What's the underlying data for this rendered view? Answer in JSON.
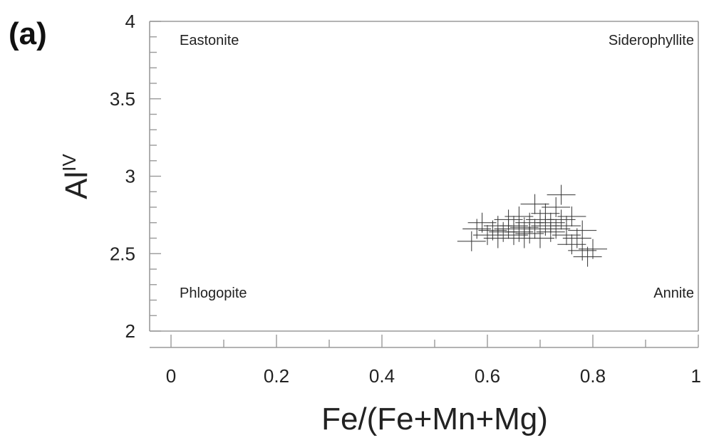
{
  "panel_label": "(a)",
  "chart_data": {
    "type": "scatter",
    "marker": "cross",
    "xlabel": "Fe/(Fe+Mn+Mg)",
    "ylabel_main": "Al",
    "ylabel_sup": "IV",
    "xlim": [
      0,
      1
    ],
    "ylim": [
      2,
      4
    ],
    "x_ticks": [
      "0",
      "0.2",
      "0.4",
      "0.6",
      "0.8",
      "1"
    ],
    "x_tick_values": [
      0,
      0.2,
      0.4,
      0.6,
      0.8,
      1
    ],
    "y_ticks": [
      "2",
      "2.5",
      "3",
      "3.5",
      "4"
    ],
    "y_tick_values": [
      2,
      2.5,
      3,
      3.5,
      4
    ],
    "grid": false,
    "region_labels": {
      "top_left": "Eastonite",
      "top_right": "Siderophyllite",
      "bottom_left": "Phlogopite",
      "bottom_right": "Annite"
    },
    "points": [
      {
        "x": 0.57,
        "y": 2.58
      },
      {
        "x": 0.58,
        "y": 2.66
      },
      {
        "x": 0.59,
        "y": 2.7
      },
      {
        "x": 0.6,
        "y": 2.62
      },
      {
        "x": 0.61,
        "y": 2.65
      },
      {
        "x": 0.62,
        "y": 2.68
      },
      {
        "x": 0.62,
        "y": 2.6
      },
      {
        "x": 0.63,
        "y": 2.64
      },
      {
        "x": 0.64,
        "y": 2.72
      },
      {
        "x": 0.64,
        "y": 2.66
      },
      {
        "x": 0.65,
        "y": 2.62
      },
      {
        "x": 0.65,
        "y": 2.68
      },
      {
        "x": 0.66,
        "y": 2.64
      },
      {
        "x": 0.66,
        "y": 2.74
      },
      {
        "x": 0.67,
        "y": 2.6
      },
      {
        "x": 0.67,
        "y": 2.67
      },
      {
        "x": 0.68,
        "y": 2.7
      },
      {
        "x": 0.68,
        "y": 2.63
      },
      {
        "x": 0.69,
        "y": 2.82
      },
      {
        "x": 0.69,
        "y": 2.66
      },
      {
        "x": 0.7,
        "y": 2.72
      },
      {
        "x": 0.7,
        "y": 2.6
      },
      {
        "x": 0.71,
        "y": 2.68
      },
      {
        "x": 0.71,
        "y": 2.76
      },
      {
        "x": 0.72,
        "y": 2.64
      },
      {
        "x": 0.72,
        "y": 2.7
      },
      {
        "x": 0.73,
        "y": 2.8
      },
      {
        "x": 0.73,
        "y": 2.66
      },
      {
        "x": 0.74,
        "y": 2.88
      },
      {
        "x": 0.74,
        "y": 2.72
      },
      {
        "x": 0.75,
        "y": 2.62
      },
      {
        "x": 0.75,
        "y": 2.68
      },
      {
        "x": 0.76,
        "y": 2.56
      },
      {
        "x": 0.76,
        "y": 2.74
      },
      {
        "x": 0.77,
        "y": 2.6
      },
      {
        "x": 0.78,
        "y": 2.65
      },
      {
        "x": 0.78,
        "y": 2.52
      },
      {
        "x": 0.79,
        "y": 2.48
      },
      {
        "x": 0.8,
        "y": 2.53
      }
    ],
    "colors": {
      "marks": "#333333",
      "axes": "#9a9a9a",
      "text": "#222222"
    }
  }
}
